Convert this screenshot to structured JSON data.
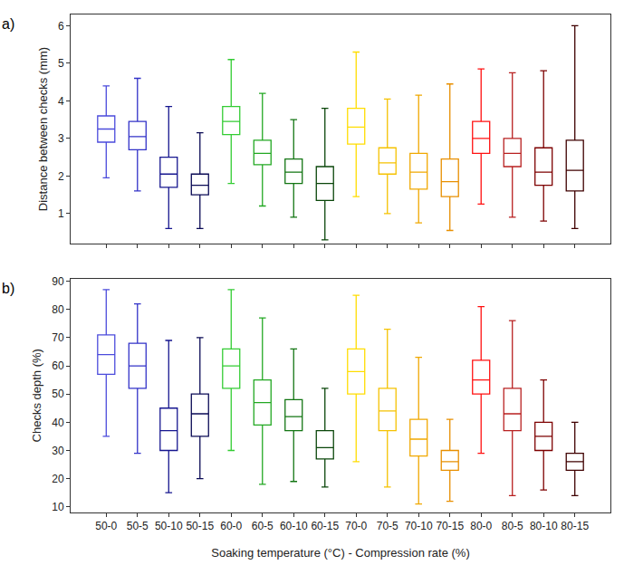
{
  "chart_data": [
    {
      "type": "box",
      "title": "a)",
      "y_label": "Distance between checks (mm)",
      "tick_labels": "y",
      "grid": false,
      "categories": [
        "50-0",
        "50-5",
        "50-10",
        "50-15",
        "60-0",
        "60-5",
        "60-10",
        "60-15",
        "70-0",
        "70-5",
        "70-10",
        "70-15",
        "80-0",
        "80-5",
        "80-10",
        "80-15"
      ],
      "colors": [
        "#4b4bdc",
        "#3232c8",
        "#16168f",
        "#0a0a55",
        "#33cc33",
        "#22a822",
        "#127512",
        "#0a460a",
        "#ffdd00",
        "#f5c200",
        "#f0a800",
        "#e88f00",
        "#ff1010",
        "#b82020",
        "#7d0000",
        "#3f0000"
      ],
      "min": [
        1.95,
        1.6,
        0.6,
        0.6,
        1.8,
        1.2,
        0.9,
        0.3,
        1.45,
        1.0,
        0.75,
        0.55,
        1.25,
        0.9,
        0.8,
        0.6
      ],
      "q1": [
        2.9,
        2.7,
        1.7,
        1.5,
        3.1,
        2.3,
        1.8,
        1.35,
        2.85,
        2.05,
        1.65,
        1.45,
        2.6,
        2.25,
        1.75,
        1.6
      ],
      "median": [
        3.25,
        3.05,
        2.05,
        1.75,
        3.45,
        2.6,
        2.1,
        1.8,
        3.3,
        2.35,
        2.1,
        1.85,
        3.0,
        2.6,
        2.1,
        2.15
      ],
      "q3": [
        3.6,
        3.45,
        2.5,
        2.05,
        3.85,
        2.95,
        2.45,
        2.25,
        3.8,
        2.75,
        2.6,
        2.45,
        3.45,
        3.0,
        2.75,
        2.95
      ],
      "max": [
        4.4,
        4.6,
        3.85,
        3.15,
        5.1,
        4.2,
        3.5,
        3.8,
        5.3,
        4.05,
        4.15,
        4.45,
        4.85,
        4.75,
        4.8,
        6.0
      ],
      "ylim": [
        0.2,
        6.3
      ],
      "yticks": [
        1,
        2,
        3,
        4,
        5,
        6
      ]
    },
    {
      "type": "box",
      "title": "b)",
      "y_label": "Checks depth (%)",
      "x_label": "Soaking temperature (°C) - Compression rate (%)",
      "grid": false,
      "categories": [
        "50-0",
        "50-5",
        "50-10",
        "50-15",
        "60-0",
        "60-5",
        "60-10",
        "60-15",
        "70-0",
        "70-5",
        "70-10",
        "70-15",
        "80-0",
        "80-5",
        "80-10",
        "80-15"
      ],
      "colors": [
        "#4b4bdc",
        "#3232c8",
        "#16168f",
        "#0a0a55",
        "#33cc33",
        "#22a822",
        "#127512",
        "#0a460a",
        "#ffdd00",
        "#f5c200",
        "#f0a800",
        "#e88f00",
        "#ff1010",
        "#b82020",
        "#7d0000",
        "#3f0000"
      ],
      "min": [
        35,
        29,
        15,
        20,
        30,
        18,
        19,
        17,
        26,
        17,
        11,
        12,
        29,
        14,
        16,
        14
      ],
      "q1": [
        57,
        52,
        30,
        35,
        52,
        39,
        37,
        27,
        50,
        37,
        28,
        23,
        50,
        37,
        30,
        23
      ],
      "median": [
        64,
        60,
        37,
        43,
        60,
        47,
        42,
        31,
        58,
        44,
        34,
        26,
        55,
        43,
        35,
        26
      ],
      "q3": [
        71,
        68,
        45,
        50,
        66,
        55,
        48,
        37,
        66,
        52,
        41,
        30,
        62,
        52,
        40,
        29
      ],
      "max": [
        87,
        82,
        69,
        70,
        87,
        77,
        66,
        52,
        85,
        73,
        63,
        41,
        81,
        76,
        55,
        40
      ],
      "ylim": [
        8,
        91
      ],
      "yticks": [
        10,
        20,
        30,
        40,
        50,
        60,
        70,
        80,
        90
      ]
    }
  ]
}
